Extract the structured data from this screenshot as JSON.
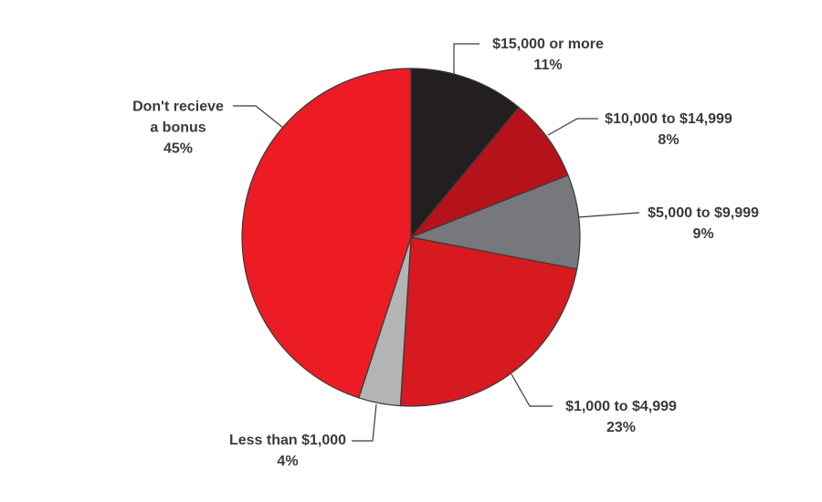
{
  "chart_data": {
    "type": "pie",
    "categories": [
      "$15,000 or more",
      "$10,000 to $14,999",
      "$5,000 to $9,999",
      "$1,000 to $4,999",
      "Less than $1,000",
      "Don't recieve a bonus"
    ],
    "values": [
      11,
      8,
      9,
      23,
      4,
      45
    ],
    "value_labels": [
      "11%",
      "8%",
      "9%",
      "23%",
      "4%",
      "45%"
    ],
    "colors": [
      "#231f20",
      "#b5121b",
      "#77787b",
      "#d71920",
      "#b2b4b6",
      "#ed1c24"
    ]
  }
}
